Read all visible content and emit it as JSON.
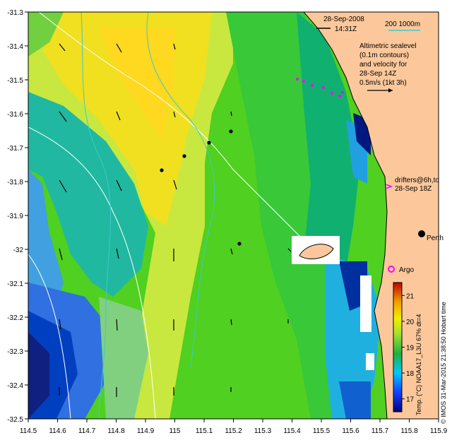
{
  "header": {
    "date": "28-Sep-2008",
    "time": "14:31Z"
  },
  "scale": {
    "label": "200  1000m",
    "color": "#40c8c8"
  },
  "legend": {
    "lines": [
      "Altimetric sealevel",
      "(0.1m contours)",
      "and velocity for",
      "28-Sep 14Z",
      "0.5m/s (1kt 3h)"
    ]
  },
  "drifters": {
    "line1": "drifters@6h,to",
    "line2": "28-Sep 18Z",
    "color": "#ff00ff"
  },
  "places": {
    "city": "Perth",
    "argo": "Argo"
  },
  "axes": {
    "x_ticks": [
      "114.5",
      "114.6",
      "114.7",
      "114.8",
      "114.9",
      "115",
      "115.1",
      "115.2",
      "115.3",
      "115.4",
      "115.5",
      "115.6",
      "115.7",
      "115.8",
      "115.9"
    ],
    "y_ticks": [
      "-31.3",
      "-31.4",
      "-31.5",
      "-31.6",
      "-31.7",
      "-31.8",
      "-31.9",
      "-32",
      "-32.1",
      "-32.2",
      "-32.3",
      "-32.4",
      "-32.5"
    ]
  },
  "colorbar": {
    "label": "Temp. (°C) NOAA17_L3U 67% dt=4",
    "ticks": [
      "21",
      "20",
      "19",
      "18",
      "17"
    ],
    "range": [
      16.5,
      21.5
    ]
  },
  "credit": "© IMOS 31-Mar-2015 21:38:50 Hobart time",
  "colors": {
    "land": "#fcc89b",
    "coast": "#000000",
    "contour": "#ffffff"
  }
}
